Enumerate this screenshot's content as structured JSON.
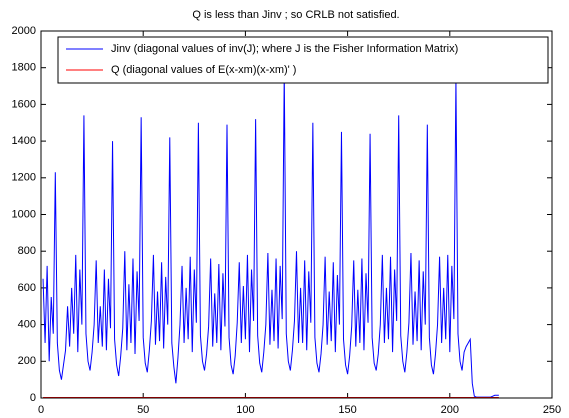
{
  "chart_data": {
    "type": "line",
    "title": "Q is less than Jinv ; so CRLB not satisfied.",
    "x": [
      1,
      2,
      3,
      4,
      5,
      6,
      7,
      8,
      9,
      10,
      11,
      12,
      13,
      14,
      15,
      16,
      17,
      18,
      19,
      20,
      21,
      22,
      23,
      24,
      25,
      26,
      27,
      28,
      29,
      30,
      31,
      32,
      33,
      34,
      35,
      36,
      37,
      38,
      39,
      40,
      41,
      42,
      43,
      44,
      45,
      46,
      47,
      48,
      49,
      50,
      51,
      52,
      53,
      54,
      55,
      56,
      57,
      58,
      59,
      60,
      61,
      62,
      63,
      64,
      65,
      66,
      67,
      68,
      69,
      70,
      71,
      72,
      73,
      74,
      75,
      76,
      77,
      78,
      79,
      80,
      81,
      82,
      83,
      84,
      85,
      86,
      87,
      88,
      89,
      90,
      91,
      92,
      93,
      94,
      95,
      96,
      97,
      98,
      99,
      100,
      101,
      102,
      103,
      104,
      105,
      106,
      107,
      108,
      109,
      110,
      111,
      112,
      113,
      114,
      115,
      116,
      117,
      118,
      119,
      120,
      121,
      122,
      123,
      124,
      125,
      126,
      127,
      128,
      129,
      130,
      131,
      132,
      133,
      134,
      135,
      136,
      137,
      138,
      139,
      140,
      141,
      142,
      143,
      144,
      145,
      146,
      147,
      148,
      149,
      150,
      151,
      152,
      153,
      154,
      155,
      156,
      157,
      158,
      159,
      160,
      161,
      162,
      163,
      164,
      165,
      166,
      167,
      168,
      169,
      170,
      171,
      172,
      173,
      174,
      175,
      176,
      177,
      178,
      179,
      180,
      181,
      182,
      183,
      184,
      185,
      186,
      187,
      188,
      189,
      190,
      191,
      192,
      193,
      194,
      195,
      196,
      197,
      198,
      199,
      200,
      201,
      202,
      203,
      204,
      205,
      206,
      207,
      208,
      209,
      210,
      211,
      212,
      213,
      214,
      215,
      216,
      217,
      218,
      219,
      220,
      221,
      222,
      223,
      224
    ],
    "series": [
      {
        "name": "Jinv (diagonal values of inv(J); where J is the Fisher Information Matrix)",
        "color": "#0000ff",
        "values": [
          650,
          300,
          720,
          200,
          550,
          350,
          1230,
          300,
          150,
          100,
          180,
          260,
          500,
          280,
          600,
          350,
          780,
          250,
          700,
          400,
          1540,
          350,
          200,
          150,
          250,
          400,
          750,
          300,
          500,
          280,
          700,
          260,
          650,
          380,
          1400,
          320,
          180,
          120,
          230,
          380,
          800,
          260,
          620,
          300,
          760,
          240,
          690,
          420,
          1530,
          330,
          190,
          140,
          260,
          420,
          780,
          290,
          580,
          310,
          740,
          270,
          660,
          400,
          1420,
          300,
          170,
          80,
          220,
          400,
          720,
          300,
          600,
          320,
          770,
          250,
          700,
          410,
          1500,
          340,
          200,
          150,
          240,
          390,
          760,
          280,
          570,
          300,
          730,
          260,
          680,
          390,
          1490,
          330,
          180,
          130,
          230,
          410,
          740,
          300,
          610,
          320,
          780,
          250,
          700,
          420,
          1520,
          340,
          190,
          140,
          250,
          400,
          790,
          290,
          590,
          310,
          760,
          270,
          720,
          430,
          1780,
          350,
          200,
          150,
          260,
          420,
          800,
          300,
          600,
          300,
          750,
          260,
          690,
          410,
          1500,
          330,
          190,
          140,
          240,
          400,
          770,
          290,
          580,
          310,
          740,
          250,
          670,
          400,
          1450,
          320,
          180,
          130,
          230,
          390,
          750,
          280,
          590,
          300,
          760,
          260,
          680,
          410,
          1440,
          330,
          190,
          150,
          240,
          400,
          780,
          300,
          600,
          320,
          770,
          250,
          700,
          420,
          1540,
          340,
          200,
          140,
          250,
          410,
          790,
          290,
          580,
          310,
          750,
          260,
          690,
          400,
          1490,
          330,
          180,
          130,
          240,
          400,
          770,
          300,
          600,
          320,
          780,
          250,
          720,
          430,
          1740,
          350,
          200,
          150,
          250,
          280,
          300,
          320,
          80,
          10,
          5,
          5,
          5,
          5,
          5,
          5,
          5,
          5,
          10,
          15,
          15,
          15
        ]
      },
      {
        "name": "Q  (diagonal values of E(x-xm)(x-xm)' )",
        "color": "#ff0000",
        "values": [
          3,
          3,
          3,
          3,
          3,
          3,
          3,
          3,
          3,
          3,
          3,
          3,
          3,
          3,
          3,
          3,
          3,
          3,
          3,
          3,
          3,
          3,
          3,
          3,
          3,
          3,
          3,
          3,
          3,
          3,
          3,
          3,
          3,
          3,
          3,
          3,
          3,
          3,
          3,
          3,
          3,
          3,
          3,
          3,
          3,
          3,
          3,
          3,
          3,
          3,
          3,
          3,
          3,
          3,
          3,
          3,
          3,
          3,
          3,
          3,
          3,
          3,
          3,
          3,
          3,
          3,
          3,
          3,
          3,
          3,
          3,
          3,
          3,
          3,
          3,
          3,
          3,
          3,
          3,
          3,
          3,
          3,
          3,
          3,
          3,
          3,
          3,
          3,
          3,
          3,
          3,
          3,
          3,
          3,
          3,
          3,
          3,
          3,
          3,
          3,
          3,
          3,
          3,
          3,
          3,
          3,
          3,
          3,
          3,
          3,
          3,
          3,
          3,
          3,
          3,
          3,
          3,
          3,
          3,
          3,
          3,
          3,
          3,
          3,
          3,
          3,
          3,
          3,
          3,
          3,
          3,
          3,
          3,
          3,
          3,
          3,
          3,
          3,
          3,
          3,
          3,
          3,
          3,
          3,
          3,
          3,
          3,
          3,
          3,
          3,
          3,
          3,
          3,
          3,
          3,
          3,
          3,
          3,
          3,
          3,
          3,
          3,
          3,
          3,
          3,
          3,
          3,
          3,
          3,
          3,
          3,
          3,
          3,
          3,
          3,
          3,
          3,
          3,
          3,
          3,
          3,
          3,
          3,
          3,
          3,
          3,
          3,
          3,
          3,
          3,
          3,
          3,
          3,
          3,
          3,
          3,
          3,
          3,
          3,
          3,
          3,
          3,
          3,
          3,
          3,
          3,
          3,
          3,
          3,
          3,
          3,
          3,
          3,
          3,
          3,
          3,
          3,
          3,
          3,
          3,
          3,
          3,
          3,
          3
        ]
      }
    ],
    "xlim": [
      0,
      250
    ],
    "xticks": [
      0,
      50,
      100,
      150,
      200,
      250
    ],
    "ylim": [
      0,
      2000
    ],
    "yticks": [
      0,
      200,
      400,
      600,
      800,
      1000,
      1200,
      1400,
      1600,
      1800,
      2000
    ],
    "legend": "top-right"
  }
}
